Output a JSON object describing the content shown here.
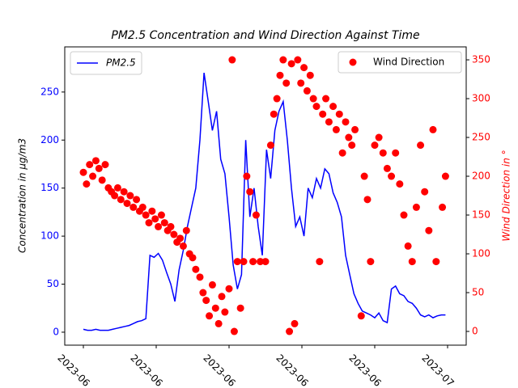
{
  "chart_data": {
    "type": "line",
    "title": "PM2.5 Concentration and Wind Direction Against Time",
    "ylabel": "Concentration in μg/m3",
    "y2label": "Wind Direction in °",
    "xlim": [
      -1.79,
      36.79
    ],
    "xticks": [
      {
        "value": 0,
        "label": "2023-06"
      },
      {
        "value": 7,
        "label": "2023-06"
      },
      {
        "value": 14,
        "label": "2023-06"
      },
      {
        "value": 21,
        "label": "2023-06"
      },
      {
        "value": 28,
        "label": "2023-06"
      },
      {
        "value": 35,
        "label": "2023-07"
      }
    ],
    "ylim": [
      -13.5,
      297
    ],
    "yticks": [
      0,
      50,
      100,
      150,
      200,
      250
    ],
    "y2lim": [
      -17.7,
      366.7
    ],
    "y2ticks": [
      0,
      50,
      100,
      150,
      200,
      250,
      300,
      350
    ],
    "series": [
      {
        "name": "PM2.5",
        "color": "#0000ff",
        "type": "line",
        "x": [
          0,
          0.4,
          0.8,
          1.2,
          1.6,
          2.0,
          2.4,
          2.8,
          3.2,
          3.6,
          4.0,
          4.4,
          4.8,
          5.2,
          5.6,
          6.0,
          6.4,
          6.8,
          7.2,
          7.6,
          8.0,
          8.4,
          8.8,
          9.2,
          9.6,
          10.0,
          10.4,
          10.8,
          11.2,
          11.6,
          12.0,
          12.4,
          12.8,
          13.2,
          13.6,
          14.0,
          14.4,
          14.8,
          15.2,
          15.6,
          16.0,
          16.4,
          16.8,
          17.2,
          17.6,
          18.0,
          18.4,
          18.8,
          19.2,
          19.6,
          20.0,
          20.4,
          20.8,
          21.2,
          21.6,
          22.0,
          22.4,
          22.8,
          23.2,
          23.6,
          24.0,
          24.4,
          24.8,
          25.2,
          25.6,
          26.0,
          26.4,
          26.8,
          27.2,
          27.6,
          28.0,
          28.4,
          28.8,
          29.2,
          29.6,
          30.0,
          30.4,
          30.8,
          31.2,
          31.6,
          32.0,
          32.4,
          32.8,
          33.2,
          33.6,
          34.0,
          34.4,
          34.8
        ],
        "values": [
          3,
          2,
          2,
          3,
          2,
          2,
          2,
          3,
          4,
          5,
          6,
          7,
          9,
          11,
          12,
          14,
          80,
          78,
          82,
          75,
          62,
          50,
          32,
          65,
          85,
          110,
          130,
          150,
          200,
          270,
          240,
          210,
          230,
          180,
          165,
          120,
          70,
          45,
          60,
          200,
          120,
          150,
          110,
          80,
          190,
          160,
          210,
          230,
          240,
          200,
          150,
          110,
          120,
          100,
          150,
          140,
          160,
          150,
          170,
          165,
          145,
          135,
          120,
          80,
          60,
          40,
          30,
          22,
          20,
          18,
          15,
          20,
          12,
          10,
          45,
          48,
          40,
          38,
          32,
          30,
          25,
          18,
          16,
          18,
          15,
          17,
          18,
          18
        ]
      },
      {
        "name": "Wind Direction",
        "color": "#ff0000",
        "type": "scatter",
        "axis": "y2",
        "x": [
          0,
          0.3,
          0.6,
          0.9,
          1.2,
          1.5,
          1.8,
          2.1,
          2.4,
          2.7,
          3.0,
          3.3,
          3.6,
          3.9,
          4.2,
          4.5,
          4.8,
          5.1,
          5.4,
          5.7,
          6.0,
          6.3,
          6.6,
          6.9,
          7.2,
          7.5,
          7.8,
          8.1,
          8.4,
          8.7,
          9.0,
          9.3,
          9.6,
          9.9,
          10.2,
          10.5,
          10.8,
          11.2,
          11.5,
          11.8,
          12.1,
          12.4,
          12.7,
          13.0,
          13.3,
          13.6,
          14.0,
          14.3,
          14.5,
          14.8,
          15.1,
          15.4,
          15.7,
          16.0,
          16.3,
          16.6,
          17.0,
          17.5,
          18.0,
          18.3,
          18.6,
          18.9,
          19.2,
          19.5,
          19.8,
          20.0,
          20.3,
          20.6,
          20.9,
          21.2,
          21.5,
          21.8,
          22.1,
          22.4,
          22.7,
          23.0,
          23.3,
          23.6,
          24.0,
          24.3,
          24.6,
          24.9,
          25.2,
          25.5,
          25.8,
          26.1,
          26.4,
          26.7,
          27.0,
          27.3,
          27.6,
          28.0,
          28.4,
          28.8,
          29.2,
          29.6,
          30.0,
          30.4,
          30.8,
          31.2,
          31.6,
          32.0,
          32.4,
          32.8,
          33.2,
          33.6,
          33.9,
          34.2,
          34.5,
          34.8
        ],
        "values": [
          205,
          190,
          215,
          200,
          220,
          210,
          195,
          215,
          185,
          180,
          175,
          185,
          170,
          180,
          165,
          175,
          160,
          170,
          155,
          160,
          150,
          140,
          155,
          145,
          135,
          150,
          140,
          130,
          135,
          125,
          115,
          120,
          110,
          130,
          100,
          95,
          80,
          70,
          50,
          40,
          20,
          60,
          30,
          10,
          45,
          25,
          55,
          350,
          0,
          90,
          30,
          90,
          200,
          180,
          90,
          150,
          90,
          90,
          240,
          280,
          300,
          330,
          350,
          320,
          0,
          345,
          10,
          350,
          320,
          340,
          310,
          330,
          300,
          290,
          90,
          280,
          300,
          270,
          290,
          260,
          280,
          230,
          270,
          250,
          240,
          260,
          350,
          20,
          200,
          170,
          90,
          240,
          250,
          230,
          210,
          200,
          230,
          190,
          150,
          110,
          90,
          160,
          240,
          180,
          130,
          260,
          90,
          350,
          160,
          200
        ]
      }
    ]
  }
}
